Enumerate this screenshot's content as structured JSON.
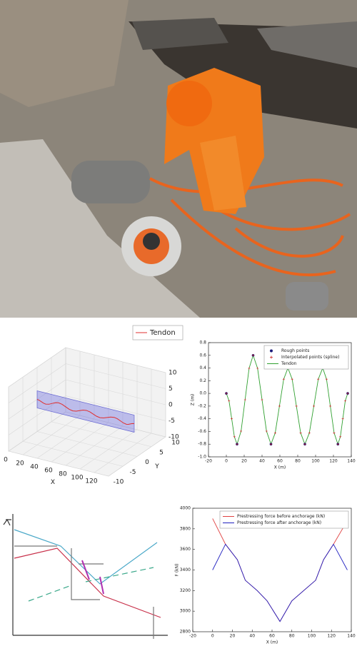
{
  "chart_data": [
    {
      "type": "line3d",
      "legend": "upper right",
      "grid": true,
      "xlabel": "X",
      "ylabel": "Y",
      "xlim": [
        0,
        140
      ],
      "ylim": [
        -10,
        10
      ],
      "zlim": [
        -10,
        10
      ],
      "xticks": [
        0,
        20,
        40,
        60,
        80,
        100,
        120
      ],
      "yticks": [
        -10,
        -5,
        0,
        5,
        10
      ],
      "zticks": [
        -10,
        -5,
        0,
        5,
        10
      ],
      "series": [
        {
          "name": "Tendon",
          "color": "#e03030",
          "x": [
            0,
            3,
            6,
            9,
            12,
            16.5,
            21,
            25.5,
            30,
            35,
            40,
            45,
            50,
            54.75,
            59.5,
            64.25,
            69,
            73.75,
            78.5,
            83.25,
            88,
            93,
            98,
            103,
            108,
            112.25,
            116.5,
            120.75,
            125,
            127.75,
            130.5,
            133.25,
            136
          ],
          "values": [
            0,
            -0.117,
            -0.4,
            -0.683,
            -0.8,
            -0.595,
            -0.1,
            0.395,
            0.6,
            0.395,
            -0.1,
            -0.595,
            -0.8,
            -0.624,
            -0.2,
            0.224,
            0.4,
            0.224,
            -0.2,
            -0.624,
            -0.8,
            -0.624,
            -0.2,
            0.224,
            0.4,
            0.224,
            -0.2,
            -0.624,
            -0.8,
            -0.683,
            -0.4,
            -0.117,
            0
          ]
        }
      ]
    },
    {
      "type": "line",
      "legend": "upper right",
      "xlabel": "X (m)",
      "ylabel": "Z (m)",
      "xlim": [
        -20,
        140
      ],
      "ylim": [
        -1,
        0.8
      ],
      "xticks": [
        -20,
        0,
        20,
        40,
        60,
        80,
        100,
        120,
        140
      ],
      "yticks": [
        {
          "value": -1,
          "label": "-1.0"
        },
        -0.8,
        -0.6,
        -0.4,
        -0.2,
        {
          "value": 0,
          "label": "0.0"
        },
        0.2,
        0.4,
        0.6,
        0.8
      ],
      "series": [
        {
          "name": "Rough points",
          "color": "#1a1a7a",
          "marker": "o",
          "x": [
            0,
            12,
            30,
            50,
            69,
            88,
            108,
            125,
            136
          ],
          "values": [
            0,
            -0.8,
            0.6,
            -0.8,
            0.4,
            -0.8,
            0.4,
            -0.8,
            0
          ]
        },
        {
          "name": "Interpolated points (spline)",
          "color": "#cc2020",
          "marker": "+",
          "x": [
            0,
            3,
            6,
            9,
            12,
            16.5,
            21,
            25.5,
            30,
            35,
            40,
            45,
            50,
            54.75,
            59.5,
            64.25,
            69,
            73.75,
            78.5,
            83.25,
            88,
            93,
            98,
            103,
            108,
            112.25,
            116.5,
            120.75,
            125,
            127.75,
            130.5,
            133.25,
            136
          ],
          "values": [
            0,
            -0.117,
            -0.4,
            -0.683,
            -0.8,
            -0.595,
            -0.1,
            0.395,
            0.6,
            0.395,
            -0.1,
            -0.595,
            -0.8,
            -0.624,
            -0.2,
            0.224,
            0.4,
            0.224,
            -0.2,
            -0.624,
            -0.8,
            -0.624,
            -0.2,
            0.224,
            0.4,
            0.224,
            -0.2,
            -0.624,
            -0.8,
            -0.683,
            -0.4,
            -0.117,
            0
          ]
        },
        {
          "name": "Tendon",
          "color": "#30a030",
          "marker": "line",
          "x": [
            0,
            3,
            6,
            9,
            12,
            16.5,
            21,
            25.5,
            30,
            35,
            40,
            45,
            50,
            54.75,
            59.5,
            64.25,
            69,
            73.75,
            78.5,
            83.25,
            88,
            93,
            98,
            103,
            108,
            112.25,
            116.5,
            120.75,
            125,
            127.75,
            130.5,
            133.25,
            136
          ],
          "values": [
            0,
            -0.117,
            -0.4,
            -0.683,
            -0.8,
            -0.595,
            -0.1,
            0.395,
            0.6,
            0.395,
            -0.1,
            -0.595,
            -0.8,
            -0.624,
            -0.2,
            0.224,
            0.4,
            0.224,
            -0.2,
            -0.624,
            -0.8,
            -0.624,
            -0.2,
            0.224,
            0.4,
            0.224,
            -0.2,
            -0.624,
            -0.8,
            -0.683,
            -0.4,
            -0.117,
            0
          ]
        }
      ]
    },
    {
      "type": "line",
      "legend": "upper right",
      "xlabel": "X (m)",
      "ylabel": "F (kN)",
      "xlim": [
        -20,
        140
      ],
      "ylim": [
        2800,
        4000
      ],
      "xticks": [
        -20,
        0,
        20,
        40,
        60,
        80,
        100,
        120,
        140
      ],
      "yticks": [
        2800,
        3000,
        3200,
        3400,
        3600,
        3800,
        4000
      ],
      "series": [
        {
          "name": "Prestressing force before anchorage (kN)",
          "color": "#e04040",
          "marker": "line",
          "x": [
            0,
            13,
            25,
            33,
            45,
            55,
            68,
            80,
            92,
            104,
            112,
            122,
            136
          ],
          "values": [
            3900,
            3650,
            3500,
            3300,
            3200,
            3100,
            2900,
            3100,
            3200,
            3300,
            3500,
            3650,
            3880
          ]
        },
        {
          "name": "Prestressing force after anchorage (kN)",
          "color": "#2020c0",
          "marker": "line",
          "x": [
            0,
            13,
            25,
            33,
            45,
            55,
            68,
            80,
            92,
            104,
            112,
            122,
            136
          ],
          "values": [
            3400,
            3650,
            3500,
            3300,
            3200,
            3100,
            2900,
            3100,
            3200,
            3300,
            3500,
            3650,
            3400
          ]
        }
      ]
    }
  ]
}
